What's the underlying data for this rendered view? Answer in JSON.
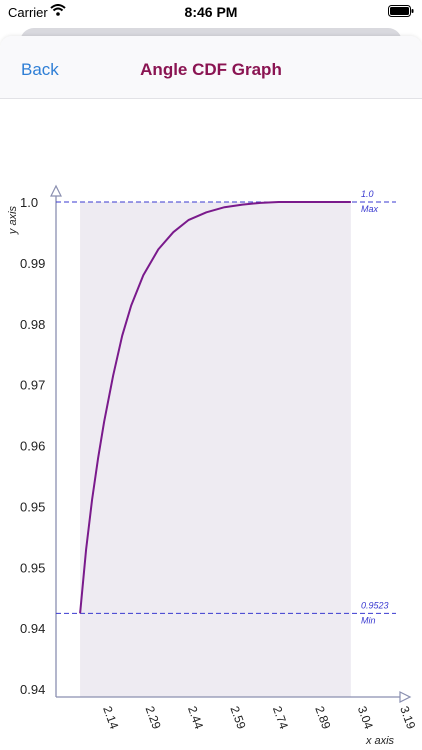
{
  "status_bar": {
    "carrier": "Carrier",
    "time": "8:46 PM"
  },
  "nav": {
    "back_label": "Back",
    "title": "Angle CDF Graph"
  },
  "colors": {
    "title": "#8a1452",
    "link": "#2f7fd6",
    "curve": "#7a1a8c",
    "ref_line": "#3a3ad0",
    "fill": "#eeebf2",
    "axis": "#8a8fb0"
  },
  "chart_data": {
    "type": "line",
    "xlabel": "x axis",
    "ylabel": "y axis",
    "x_ticks": [
      "2.14",
      "2.29",
      "2.44",
      "2.59",
      "2.74",
      "2.89",
      "3.04",
      "3.19"
    ],
    "y_ticks": [
      "1.0",
      "0.99",
      "0.98",
      "0.97",
      "0.96",
      "0.95",
      "0.95",
      "0.94",
      "0.94"
    ],
    "xlim": [
      2.06,
      3.19
    ],
    "ylim": [
      0.9426,
      1.0
    ],
    "series": [
      {
        "x": [
          2.14,
          2.16,
          2.18,
          2.2,
          2.22,
          2.25,
          2.28,
          2.31,
          2.35,
          2.4,
          2.45,
          2.5,
          2.56,
          2.62,
          2.68,
          2.74,
          2.8,
          2.9,
          3.0,
          3.04
        ],
        "y": [
          0.9523,
          0.9597,
          0.9655,
          0.9703,
          0.9745,
          0.9799,
          0.9845,
          0.988,
          0.9915,
          0.9945,
          0.9965,
          0.9979,
          0.9988,
          0.9994,
          0.9997,
          0.9999,
          1.0,
          1.0,
          1.0,
          1.0
        ]
      }
    ],
    "reference_lines": [
      {
        "value": 1.0,
        "label_top": "1.0",
        "label_bottom": "Max"
      },
      {
        "value": 0.9523,
        "label_top": "0.9523",
        "label_bottom": "Min"
      }
    ],
    "shaded_x_range": [
      2.14,
      3.04
    ],
    "grid": false,
    "legend": "none"
  }
}
